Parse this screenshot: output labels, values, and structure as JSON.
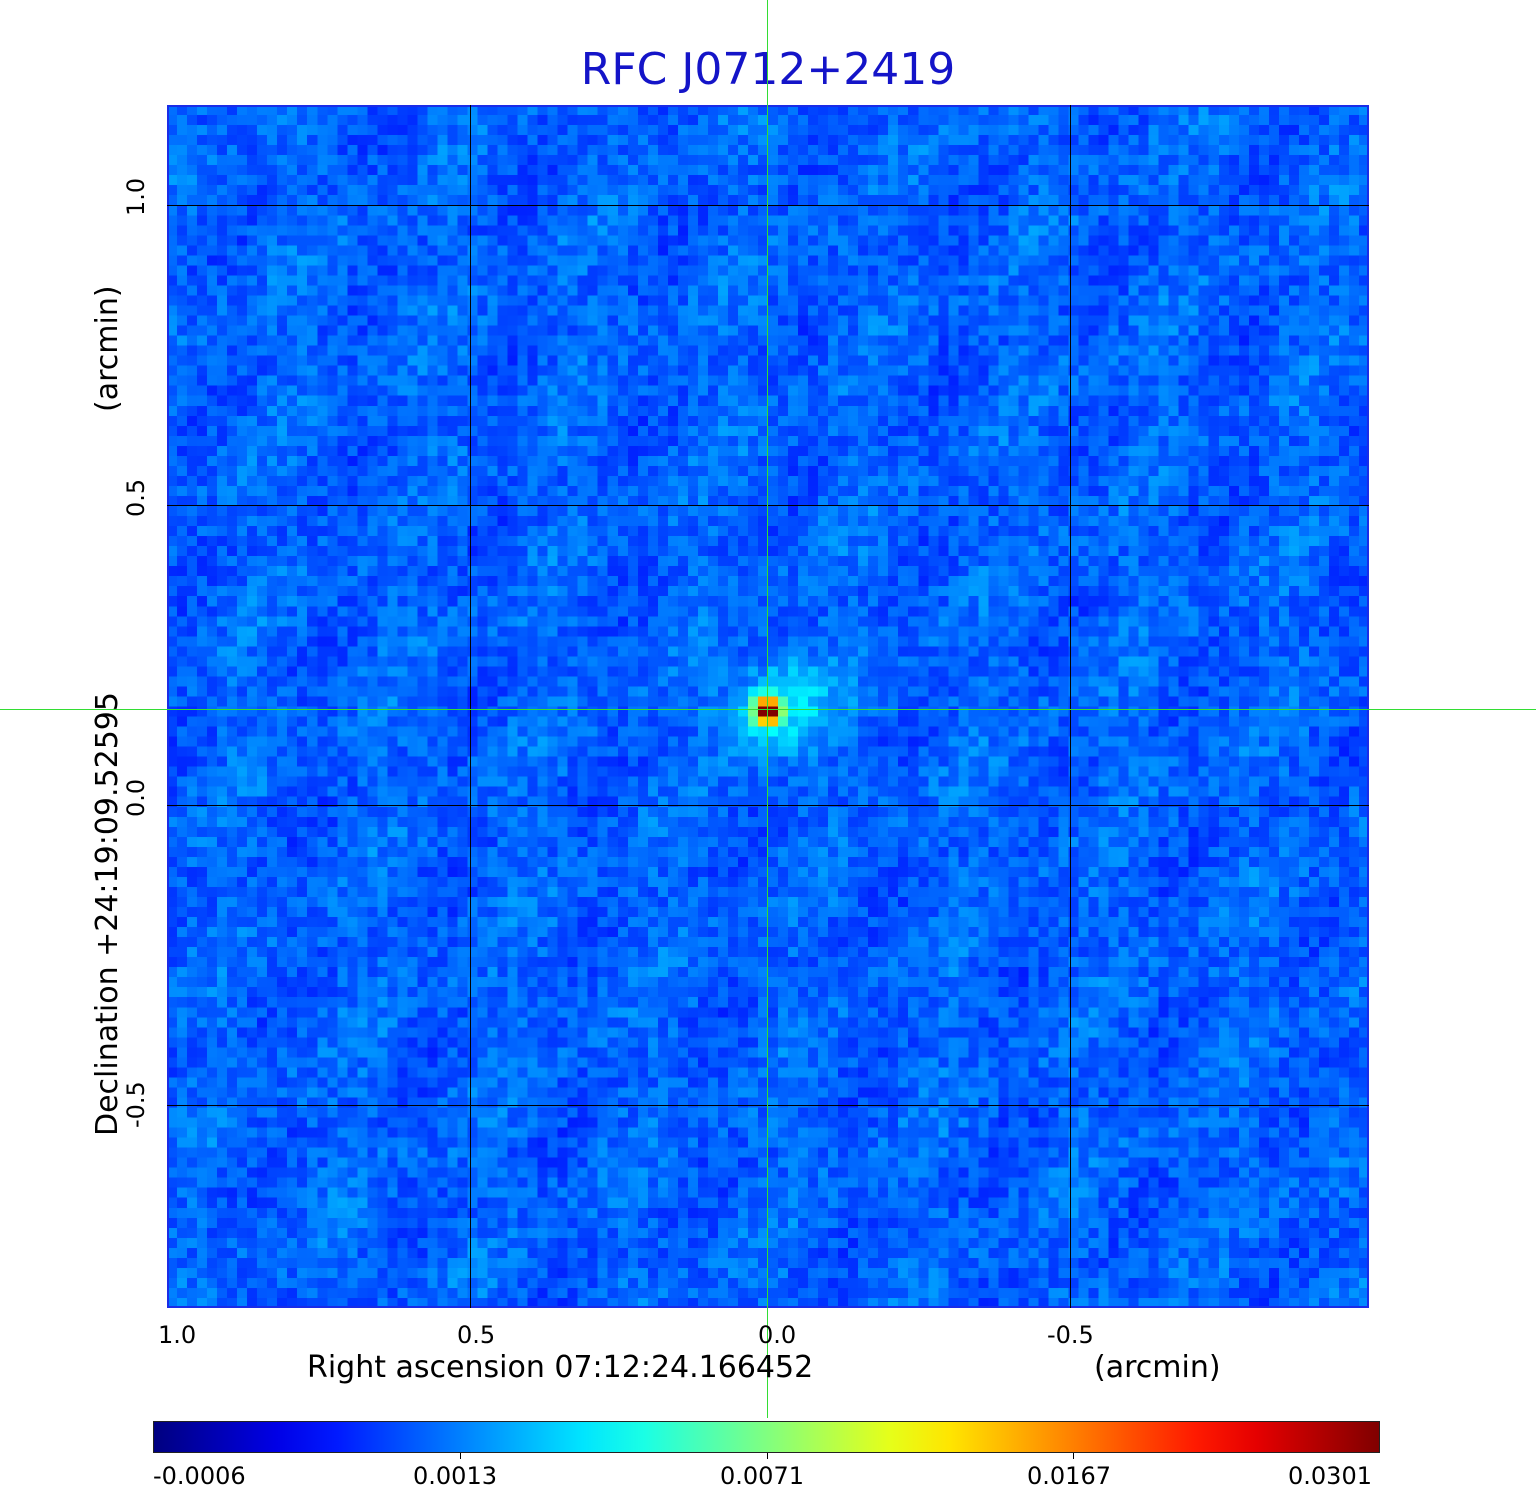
{
  "chart_data": {
    "type": "heatmap",
    "title": "RFC J0712+2419",
    "xlabel": "Right ascension  07:12:24.166452",
    "x_unit": "(arcmin)",
    "ylabel": "Declination  +24:19:09.52595",
    "y_unit": "(arcmin)",
    "x_ticks": [
      "1.0",
      "0.5",
      "0.0",
      "-0.5"
    ],
    "y_ticks": [
      "1.0",
      "0.5",
      "0.0",
      "-0.5"
    ],
    "xlim": [
      1.0,
      -1.0
    ],
    "ylim": [
      -0.835,
      1.17
    ],
    "grid": true,
    "colormap": "jet",
    "colorbar_ticks": [
      "-0.0006",
      "0.0013",
      "0.0071",
      "0.0167",
      "0.0301"
    ],
    "crosshair_color": "#33dd33",
    "source_peak": {
      "x": 0.0,
      "y": 0.16,
      "value": 0.0301
    },
    "background_level": 0.0005
  },
  "colors": {
    "title": "#1414c8",
    "frame": "#1a2ce8"
  }
}
